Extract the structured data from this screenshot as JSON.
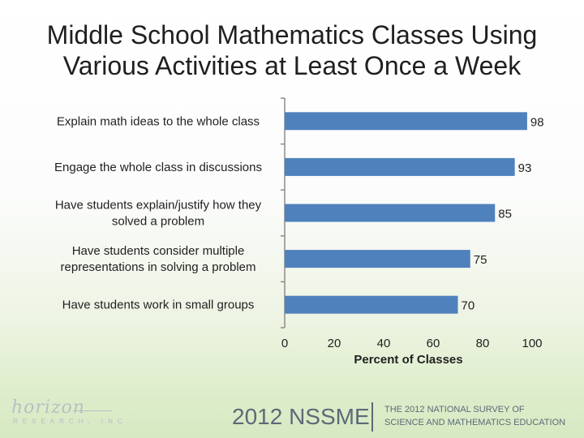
{
  "chart_data": {
    "type": "bar",
    "orientation": "horizontal",
    "title": "Middle School Mathematics Classes Using Various Activities at Least Once a Week",
    "xlabel": "Percent of Classes",
    "ylabel": "",
    "xlim": [
      0,
      100
    ],
    "xticks": [
      "0",
      "20",
      "40",
      "60",
      "80",
      "100"
    ],
    "grid": false,
    "categories": [
      [
        "Explain math ideas to the whole class"
      ],
      [
        "Engage the whole class in discussions"
      ],
      [
        "Have students explain/justify how they",
        "solved a problem"
      ],
      [
        "Have students consider multiple",
        "representations in solving a problem"
      ],
      [
        "Have students work in small groups"
      ]
    ],
    "values": [
      98,
      93,
      85,
      75,
      70
    ],
    "value_labels": [
      "98",
      "93",
      "85",
      "75",
      "70"
    ],
    "bar_color": "#4f81bd",
    "axis_color": "#8c8c8c"
  },
  "branding": {
    "logo_word": "horizon",
    "logo_sub": "RESEARCH, INC.",
    "footer_year": "2012 NSSME",
    "footer_survey_line1": "THE 2012 NATIONAL SURVEY OF",
    "footer_survey_line2": "SCIENCE AND MATHEMATICS EDUCATION"
  }
}
